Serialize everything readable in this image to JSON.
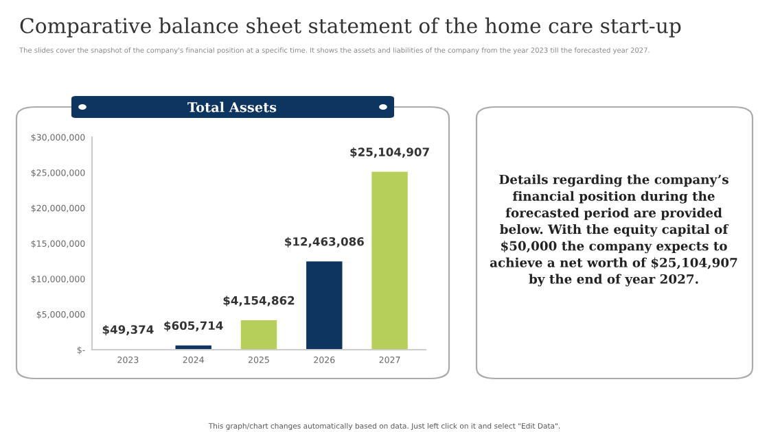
{
  "chart_data": {
    "type": "bar",
    "title": "Comparative balance sheet statement of the home care start-up",
    "subtitle": "The slides cover the snapshot of the company's financial position at a specific time. It shows the assets and liabilities of the company from the year 2023 till the forecasted year 2027.",
    "xlabel": "Total Assets",
    "categories": [
      "2023",
      "2024",
      "2025",
      "2026",
      "2027"
    ],
    "values": [
      49374,
      605714,
      4154862,
      12463086,
      25104907
    ],
    "colors": [
      "#b5cf5a",
      "#0d3560",
      "#b5cf5a",
      "#0d3560",
      "#b5cf5a"
    ],
    "value_labels": [
      "$49,374",
      "$605,714",
      "$4,154,862",
      "$12,463,086",
      "$25,104,907"
    ],
    "ylim": [
      0,
      30000000
    ],
    "yticks": [
      {
        "value": 0,
        "label": "$-"
      },
      {
        "value": 5000000,
        "label": "$5,000,000"
      },
      {
        "value": 10000000,
        "label": "$10,000,000"
      },
      {
        "value": 15000000,
        "label": "$15,000,000"
      },
      {
        "value": 20000000,
        "label": "$20,000,000"
      },
      {
        "value": 25000000,
        "label": "$25,000,000"
      },
      {
        "value": 30000000,
        "label": "$30,000,000"
      }
    ],
    "grid": false,
    "legend": false,
    "annotations": [
      "Details regarding the company’s\nfinancial position during the\nforecasted period are provided\nbelow. With the equity capital of\n$50,000 the company expects to\nachieve a net worth of $25,104,907\nby the end of year 2027.",
      "This graph/chart changes automatically based on data. Just left click on it and select \"Edit Data\"."
    ]
  }
}
